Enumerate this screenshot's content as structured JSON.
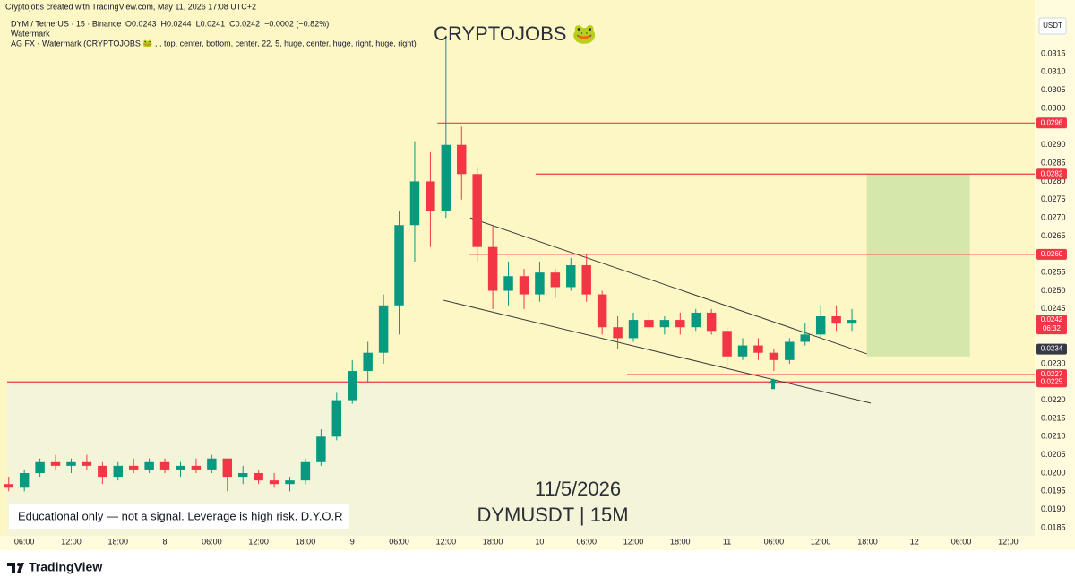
{
  "header": {
    "credit": "Cryptojobs created with TradingView.com, May 11, 2026 17:08 UTC+2",
    "symbol": "DYM / TetherUS · 15 · Binance",
    "ohlc": [
      "O0.0243",
      "H0.0244",
      "L0.0241",
      "C0.0242",
      "−0.0002 (−0.82%)"
    ],
    "indicator": "Watermark",
    "indicator_detail": "AG FX - Watermark (CRYPTOJOBS 🐸 , , top, center, bottom, center, 22, 5, huge, center, huge, right, huge, right)"
  },
  "footer": {
    "brand": "TradingView"
  },
  "chart_data": {
    "type": "candlestick",
    "title": "CRYPTOJOBS 🐸",
    "date_text": "11/5/2026",
    "pair_text": "DYMUSDT | 15M",
    "disclaimer": "Educational only — not a signal. Leverage is high risk. D.Y.O.R",
    "currency": "USDT",
    "up_color": "#089981",
    "down_color": "#f23645",
    "x": [
      4,
      6,
      8,
      10,
      12,
      14,
      16,
      18,
      20,
      22,
      24,
      26,
      28,
      30,
      32,
      34,
      36,
      38,
      40,
      42,
      44,
      46,
      48,
      50,
      52,
      54,
      56,
      58,
      60,
      62,
      64,
      66,
      68,
      70,
      72,
      74,
      76,
      78,
      80,
      82,
      84,
      86,
      88,
      90,
      92,
      94,
      96,
      98,
      100,
      102,
      104,
      106,
      108,
      110,
      112
    ],
    "open": [
      0.0197,
      0.0196,
      0.02,
      0.0203,
      0.0202,
      0.0203,
      0.0202,
      0.0199,
      0.0202,
      0.0201,
      0.0203,
      0.0201,
      0.0202,
      0.0201,
      0.0204,
      0.0199,
      0.02,
      0.0198,
      0.0197,
      0.0198,
      0.0203,
      0.021,
      0.022,
      0.0228,
      0.0233,
      0.0246,
      0.0268,
      0.028,
      0.0272,
      0.029,
      0.0282,
      0.0262,
      0.025,
      0.0254,
      0.0249,
      0.0255,
      0.0251,
      0.0257,
      0.0249,
      0.024,
      0.0237,
      0.0242,
      0.024,
      0.0242,
      0.024,
      0.0244,
      0.0239,
      0.0232,
      0.0235,
      0.0233,
      0.0231,
      0.0236,
      0.0238,
      0.0243,
      0.0241
    ],
    "high": [
      0.0199,
      0.0201,
      0.0204,
      0.0205,
      0.0204,
      0.0205,
      0.0203,
      0.0203,
      0.0204,
      0.0204,
      0.0204,
      0.0203,
      0.0204,
      0.0205,
      0.0204,
      0.0202,
      0.0201,
      0.02,
      0.0199,
      0.0204,
      0.0212,
      0.0222,
      0.0231,
      0.0236,
      0.0249,
      0.0272,
      0.0291,
      0.0288,
      0.032,
      0.0295,
      0.0284,
      0.0268,
      0.0258,
      0.0256,
      0.0258,
      0.0256,
      0.0259,
      0.026,
      0.025,
      0.0243,
      0.0244,
      0.0244,
      0.0243,
      0.0244,
      0.0245,
      0.0245,
      0.024,
      0.0237,
      0.0237,
      0.0234,
      0.0237,
      0.0241,
      0.0246,
      0.0246,
      0.0245
    ],
    "low": [
      0.0195,
      0.0195,
      0.0199,
      0.0201,
      0.02,
      0.0201,
      0.0197,
      0.0198,
      0.02,
      0.02,
      0.02,
      0.0199,
      0.02,
      0.02,
      0.0195,
      0.0197,
      0.0197,
      0.0196,
      0.0195,
      0.0197,
      0.0202,
      0.0209,
      0.0219,
      0.0225,
      0.023,
      0.0238,
      0.0258,
      0.0262,
      0.027,
      0.0275,
      0.0258,
      0.0245,
      0.0246,
      0.0245,
      0.0247,
      0.0248,
      0.025,
      0.0247,
      0.0238,
      0.0234,
      0.0236,
      0.0239,
      0.0238,
      0.0238,
      0.0239,
      0.0238,
      0.0229,
      0.0231,
      0.0231,
      0.0228,
      0.023,
      0.0235,
      0.0237,
      0.0239,
      0.0239
    ],
    "close": [
      0.0196,
      0.02,
      0.0203,
      0.0202,
      0.0203,
      0.0202,
      0.0199,
      0.0202,
      0.0201,
      0.0203,
      0.0201,
      0.0202,
      0.0201,
      0.0204,
      0.0199,
      0.02,
      0.0198,
      0.0197,
      0.0198,
      0.0203,
      0.021,
      0.022,
      0.0228,
      0.0233,
      0.0246,
      0.0268,
      0.028,
      0.0272,
      0.029,
      0.0282,
      0.0262,
      0.025,
      0.0254,
      0.0249,
      0.0255,
      0.0251,
      0.0257,
      0.0249,
      0.024,
      0.0237,
      0.0242,
      0.024,
      0.0242,
      0.024,
      0.0244,
      0.0239,
      0.0232,
      0.0235,
      0.0233,
      0.0231,
      0.0236,
      0.0238,
      0.0243,
      0.0241,
      0.0242
    ],
    "xlim": [
      3.8,
      135.4
    ],
    "ylim": [
      0.01828,
      0.03263
    ],
    "xticks": [
      {
        "value": 6,
        "label": "06:00"
      },
      {
        "value": 12,
        "label": "12:00"
      },
      {
        "value": 18,
        "label": "18:00"
      },
      {
        "value": 24,
        "label": "8"
      },
      {
        "value": 30,
        "label": "06:00"
      },
      {
        "value": 36,
        "label": "12:00"
      },
      {
        "value": 42,
        "label": "18:00"
      },
      {
        "value": 48,
        "label": "9"
      },
      {
        "value": 54,
        "label": "06:00"
      },
      {
        "value": 60,
        "label": "12:00"
      },
      {
        "value": 66,
        "label": "18:00"
      },
      {
        "value": 72,
        "label": "10"
      },
      {
        "value": 78,
        "label": "06:00"
      },
      {
        "value": 84,
        "label": "12:00"
      },
      {
        "value": 90,
        "label": "18:00"
      },
      {
        "value": 96,
        "label": "11"
      },
      {
        "value": 102,
        "label": "06:00"
      },
      {
        "value": 108,
        "label": "12:00"
      },
      {
        "value": 114,
        "label": "18:00"
      },
      {
        "value": 120,
        "label": "12"
      },
      {
        "value": 126,
        "label": "06:00"
      },
      {
        "value": 132,
        "label": "12:00"
      }
    ],
    "yticks": [
      0.0185,
      {
        "value": 0.019,
        "label": "0.0190"
      },
      0.0195,
      {
        "value": 0.02,
        "label": "0.0200"
      },
      0.0205,
      {
        "value": 0.021,
        "label": "0.0210"
      },
      0.0215,
      {
        "value": 0.022,
        "label": "0.0220"
      },
      {
        "value": 0.023,
        "label": "0.0230"
      },
      0.0245,
      {
        "value": 0.025,
        "label": "0.0250"
      },
      0.0255,
      0.0265,
      {
        "value": 0.027,
        "label": "0.0270"
      },
      0.0275,
      {
        "value": 0.028,
        "label": "0.0280"
      },
      0.0285,
      {
        "value": 0.029,
        "label": "0.0290"
      },
      {
        "value": 0.03,
        "label": "0.0300"
      },
      0.0305,
      {
        "value": 0.031,
        "label": "0.0310"
      },
      0.0315
    ],
    "grid": false,
    "price_lines": [
      {
        "value": 0.0296,
        "label": "0.0296",
        "start": 58.9,
        "color": "#f23645"
      },
      {
        "value": 0.0282,
        "label": "0.0282",
        "start": 71.5,
        "color": "#f23645"
      },
      {
        "value": 0.026,
        "label": "0.0260",
        "start": 63,
        "color": "#f23645"
      },
      {
        "value": 0.0227,
        "label": "0.0227",
        "start": 83.2,
        "color": "#f23645"
      },
      {
        "value": 0.0225,
        "label": "0.0225",
        "start": 3.8,
        "color": "#f23645",
        "fill_below": "#f4f5d8"
      }
    ],
    "markers": [
      {
        "value": 0.0242,
        "label": "0.0242",
        "sub": "06:32",
        "color": "#f23645"
      },
      {
        "value": 0.0234,
        "label": "0.0234",
        "color": "#363a45"
      }
    ],
    "trend_lines": [
      {
        "x": [
          63.1,
          113.9
        ],
        "y": [
          0.027,
          0.02327
        ],
        "color": "#3c3c3c"
      },
      {
        "x": [
          59.7,
          114.4
        ],
        "y": [
          0.02474,
          0.02192
        ],
        "color": "#3c3c3c"
      }
    ],
    "position": {
      "start": 113.9,
      "end": 127.1,
      "top": 0.0282,
      "bottom": 0.0232,
      "color": "#cfe4a6"
    },
    "arrow": {
      "x": 101.9,
      "y": 0.0226,
      "color": "#089981"
    }
  }
}
